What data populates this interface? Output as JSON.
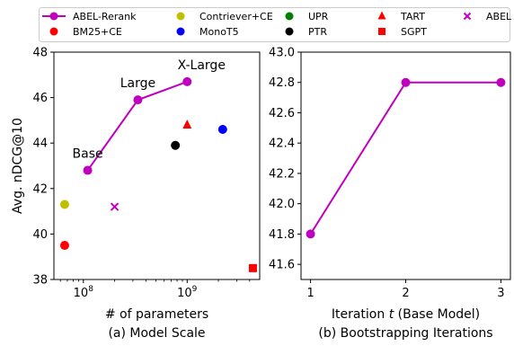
{
  "colors": {
    "abel_rerank": "#bf00bf",
    "bm25_ce": "#ff0000",
    "contriever_ce": "#bfbf00",
    "monot5": "#0000ff",
    "upr": "#008000",
    "ptr": "#000000",
    "tart": "#ff0000",
    "sgpt": "#ff0000",
    "abel": "#bf00bf"
  },
  "legend": [
    {
      "key": "abel_rerank",
      "label": "ABEL-Rerank",
      "marker": "line-circle"
    },
    {
      "key": "bm25_ce",
      "label": "BM25+CE",
      "marker": "circle"
    },
    {
      "key": "contriever_ce",
      "label": "Contriever+CE",
      "marker": "circle"
    },
    {
      "key": "monot5",
      "label": "MonoT5",
      "marker": "circle"
    },
    {
      "key": "upr",
      "label": "UPR",
      "marker": "circle"
    },
    {
      "key": "ptr",
      "label": "PTR",
      "marker": "circle"
    },
    {
      "key": "tart",
      "label": "TART",
      "marker": "triangle"
    },
    {
      "key": "sgpt",
      "label": "SGPT",
      "marker": "square"
    },
    {
      "key": "abel",
      "label": "ABEL",
      "marker": "x"
    }
  ],
  "chart_data": [
    {
      "type": "scatter",
      "caption": "(a) Model Scale",
      "xlabel": "# of parameters",
      "ylabel": "Avg. nDCG@10",
      "xscale": "log",
      "xlim": [
        52000000,
        5000000000
      ],
      "ylim": [
        38,
        48
      ],
      "xticks": [
        {
          "value": 100000000,
          "base": "10",
          "exp": "8"
        },
        {
          "value": 1000000000,
          "base": "10",
          "exp": "9"
        }
      ],
      "yticks": [
        38,
        40,
        42,
        44,
        46,
        48
      ],
      "grid": false,
      "line_series": {
        "name": "ABEL-Rerank",
        "key": "abel_rerank",
        "x": [
          110000000,
          335000000,
          1000000000
        ],
        "y": [
          42.8,
          45.9,
          46.7
        ],
        "labels": [
          "Base",
          "Large",
          "X-Large"
        ]
      },
      "points": [
        {
          "name": "BM25+CE",
          "key": "bm25_ce",
          "marker": "circle",
          "x": 66000000,
          "y": 39.5
        },
        {
          "name": "Contriever+CE",
          "key": "contriever_ce",
          "marker": "circle",
          "x": 66000000,
          "y": 41.3
        },
        {
          "name": "ABEL",
          "key": "abel",
          "marker": "x",
          "x": 200000000,
          "y": 41.2
        },
        {
          "name": "PTR",
          "key": "ptr",
          "marker": "circle",
          "x": 770000000,
          "y": 43.9
        },
        {
          "name": "TART",
          "key": "tart",
          "marker": "triangle",
          "x": 1000000000,
          "y": 44.8
        },
        {
          "name": "MonoT5",
          "key": "monot5",
          "marker": "circle",
          "x": 2200000000,
          "y": 44.6
        },
        {
          "name": "SGPT",
          "key": "sgpt",
          "marker": "square",
          "x": 4300000000,
          "y": 38.5
        }
      ]
    },
    {
      "type": "line",
      "caption": "(b) Bootstrapping Iterations",
      "xlabel": "Iteration t (Base Model)",
      "ylabel": "",
      "xlim": [
        0.9,
        3.1
      ],
      "ylim": [
        41.5,
        43.0
      ],
      "xticks": [
        1,
        2,
        3
      ],
      "yticks": [
        "41.6",
        "41.8",
        "42.0",
        "42.2",
        "42.4",
        "42.6",
        "42.8",
        "43.0"
      ],
      "grid": false,
      "series": [
        {
          "key": "abel_rerank",
          "x": [
            1,
            2,
            3
          ],
          "y": [
            41.8,
            42.8,
            42.8
          ]
        }
      ]
    }
  ]
}
